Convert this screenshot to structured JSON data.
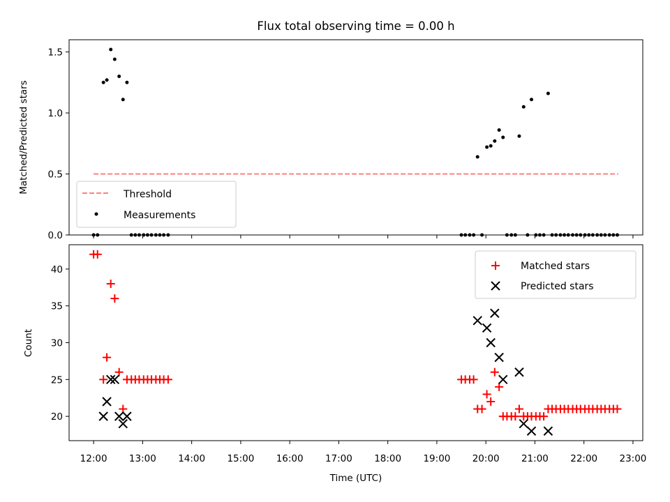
{
  "title": "Flux total observing time = 0.00 h",
  "colors": {
    "threshold": "#ff7f7f",
    "measurement": "#000000",
    "matched": "#ff0000",
    "predicted": "#000000"
  },
  "chart_data": [
    {
      "type": "scatter",
      "ylabel": "Matched/Predicted stars",
      "xlim": [
        11.5,
        23.2
      ],
      "ylim": [
        0,
        1.6
      ],
      "yticks": [
        "0.0",
        "0.5",
        "1.0",
        "1.5"
      ],
      "ytick_values": [
        0,
        0.5,
        1.0,
        1.5
      ],
      "legend": {
        "placement": "lower-left",
        "entries": [
          "Threshold",
          "Measurements"
        ]
      },
      "threshold": {
        "name": "Threshold",
        "value": 0.5,
        "x": [
          12.0,
          22.7
        ]
      },
      "measurements": {
        "name": "Measurements",
        "x": [
          12.0,
          12.08,
          12.2,
          12.27,
          12.35,
          12.43,
          12.52,
          12.6,
          12.68,
          12.77,
          12.85,
          12.93,
          13.02,
          13.1,
          13.18,
          13.27,
          13.35,
          13.43,
          13.52,
          19.5,
          19.58,
          19.67,
          19.75,
          19.83,
          19.92,
          20.02,
          20.1,
          20.18,
          20.27,
          20.35,
          20.43,
          20.52,
          20.6,
          20.68,
          20.77,
          20.85,
          20.93,
          21.02,
          21.1,
          21.18,
          21.27,
          21.35,
          21.43,
          21.52,
          21.6,
          21.68,
          21.77,
          21.85,
          21.93,
          22.02,
          22.1,
          22.18,
          22.27,
          22.35,
          22.43,
          22.52,
          22.6,
          22.68
        ],
        "y": [
          0,
          0,
          1.25,
          1.27,
          1.52,
          1.44,
          1.3,
          1.11,
          1.25,
          0,
          0,
          0,
          0,
          0,
          0,
          0,
          0,
          0,
          0,
          0,
          0,
          0,
          0,
          0.64,
          0,
          0.72,
          0.73,
          0.77,
          0.86,
          0.8,
          0,
          0,
          0,
          0.81,
          1.05,
          0,
          1.11,
          0,
          0,
          0,
          1.16,
          0,
          0,
          0,
          0,
          0,
          0,
          0,
          0,
          0,
          0,
          0,
          0,
          0,
          0,
          0,
          0,
          0
        ]
      }
    },
    {
      "type": "scatter",
      "xlabel": "Time (UTC)",
      "ylabel": "Count",
      "xlim": [
        11.5,
        23.2
      ],
      "ylim": [
        16.7,
        43.3
      ],
      "yticks": [
        "20",
        "25",
        "30",
        "35",
        "40"
      ],
      "ytick_values": [
        20,
        25,
        30,
        35,
        40
      ],
      "xticks": [
        "12:00",
        "13:00",
        "14:00",
        "15:00",
        "16:00",
        "17:00",
        "18:00",
        "19:00",
        "20:00",
        "21:00",
        "22:00",
        "23:00"
      ],
      "xtick_values": [
        12,
        13,
        14,
        15,
        16,
        17,
        18,
        19,
        20,
        21,
        22,
        23
      ],
      "legend": {
        "placement": "upper-right",
        "entries": [
          "Matched stars",
          "Predicted stars"
        ]
      },
      "matched": {
        "name": "Matched stars",
        "x": [
          12.0,
          12.08,
          12.2,
          12.27,
          12.35,
          12.43,
          12.52,
          12.6,
          12.68,
          12.77,
          12.85,
          12.93,
          13.02,
          13.1,
          13.18,
          13.27,
          13.35,
          13.43,
          13.52,
          19.5,
          19.58,
          19.67,
          19.75,
          19.83,
          19.92,
          20.02,
          20.1,
          20.18,
          20.27,
          20.35,
          20.43,
          20.52,
          20.6,
          20.68,
          20.77,
          20.85,
          20.93,
          21.02,
          21.1,
          21.18,
          21.27,
          21.35,
          21.43,
          21.52,
          21.6,
          21.68,
          21.77,
          21.85,
          21.93,
          22.02,
          22.1,
          22.18,
          22.27,
          22.35,
          22.43,
          22.52,
          22.6,
          22.68
        ],
        "y": [
          42,
          42,
          25,
          28,
          38,
          36,
          26,
          21,
          25,
          25,
          25,
          25,
          25,
          25,
          25,
          25,
          25,
          25,
          25,
          25,
          25,
          25,
          25,
          21,
          21,
          23,
          22,
          26,
          24,
          20,
          20,
          20,
          20,
          21,
          20,
          20,
          20,
          20,
          20,
          20,
          21,
          21,
          21,
          21,
          21,
          21,
          21,
          21,
          21,
          21,
          21,
          21,
          21,
          21,
          21,
          21,
          21,
          21
        ]
      },
      "predicted": {
        "name": "Predicted stars",
        "x": [
          12.2,
          12.27,
          12.35,
          12.43,
          12.52,
          12.6,
          12.68,
          19.83,
          20.02,
          20.1,
          20.18,
          20.27,
          20.35,
          20.68,
          20.77,
          20.93,
          21.27
        ],
        "y": [
          20,
          22,
          25,
          25,
          20,
          19,
          20,
          33,
          32,
          30,
          34,
          28,
          25,
          26,
          19,
          18,
          18
        ]
      }
    }
  ]
}
